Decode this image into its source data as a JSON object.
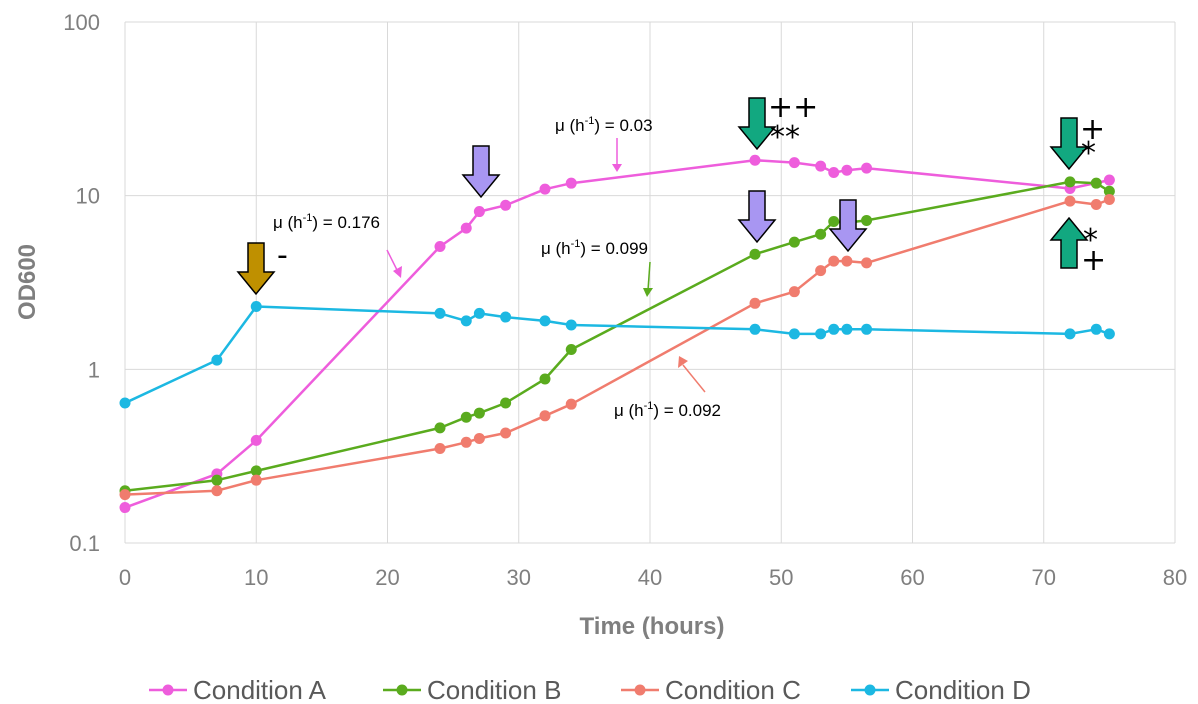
{
  "chart_data": {
    "type": "line",
    "xlabel": "Time (hours)",
    "ylabel": "OD600",
    "xlim": [
      0,
      80
    ],
    "ylim": [
      0.1,
      100
    ],
    "yscale": "log",
    "xticks": [
      "0",
      "10",
      "20",
      "30",
      "40",
      "50",
      "60",
      "70",
      "80"
    ],
    "yticks": [
      "0.1",
      "1",
      "10",
      "100"
    ],
    "grid": true,
    "legend_position": "bottom",
    "series": [
      {
        "name": "Condition A",
        "color": "#ee5ddc",
        "x": [
          0,
          7,
          10,
          24,
          26,
          27,
          29,
          32,
          34,
          48,
          51,
          53,
          54,
          55,
          56.5,
          72,
          75
        ],
        "y": [
          0.16,
          0.25,
          0.39,
          5.1,
          6.5,
          8.1,
          8.8,
          10.9,
          11.8,
          16.0,
          15.5,
          14.8,
          13.6,
          14.0,
          14.4,
          11.0,
          12.3
        ]
      },
      {
        "name": "Condition B",
        "color": "#5aab1e",
        "x": [
          0,
          7,
          10,
          24,
          26,
          27,
          29,
          32,
          34,
          48,
          51,
          53,
          54,
          55,
          56.5,
          72,
          74,
          75
        ],
        "y": [
          0.2,
          0.23,
          0.26,
          0.46,
          0.53,
          0.56,
          0.64,
          0.88,
          1.3,
          4.6,
          5.4,
          6.0,
          7.1,
          7.0,
          7.2,
          12.0,
          11.8,
          10.6
        ]
      },
      {
        "name": "Condition C",
        "color": "#f07c6e",
        "x": [
          0,
          7,
          10,
          24,
          26,
          27,
          29,
          32,
          34,
          48,
          51,
          53,
          54,
          55,
          56.5,
          72,
          74,
          75
        ],
        "y": [
          0.19,
          0.2,
          0.23,
          0.35,
          0.38,
          0.4,
          0.43,
          0.54,
          0.63,
          2.4,
          2.8,
          3.7,
          4.2,
          4.2,
          4.1,
          9.3,
          8.9,
          9.5
        ]
      },
      {
        "name": "Condition D",
        "color": "#1cb8e2",
        "x": [
          0,
          7,
          10,
          24,
          26,
          27,
          29,
          32,
          34,
          48,
          51,
          53,
          54,
          55,
          56.5,
          72,
          74,
          75
        ],
        "y": [
          0.64,
          1.13,
          2.3,
          2.1,
          1.9,
          2.1,
          2.0,
          1.9,
          1.8,
          1.7,
          1.6,
          1.6,
          1.7,
          1.7,
          1.7,
          1.6,
          1.7,
          1.6
        ]
      }
    ],
    "annotations": [
      {
        "text": "μ (h",
        "sup": "-1",
        "after": ") = 0.03",
        "color": "#ee5ddc"
      },
      {
        "text": "μ (h",
        "sup": "-1",
        "after": ") = 0.176",
        "color": "#ee5ddc"
      },
      {
        "text": "μ (h",
        "sup": "-1",
        "after": ") = 0.099",
        "color": "#5aab1e"
      },
      {
        "text": "μ (h",
        "sup": "-1",
        "after": ") = 0.092",
        "color": "#f07c6e"
      }
    ],
    "markers": {
      "colors": {
        "gold": "#bf9000",
        "purple": "#a896f2",
        "teal": "#12a880"
      },
      "symbols": [
        "-",
        "++",
        "**",
        "+",
        "*",
        "*",
        "+"
      ]
    }
  }
}
